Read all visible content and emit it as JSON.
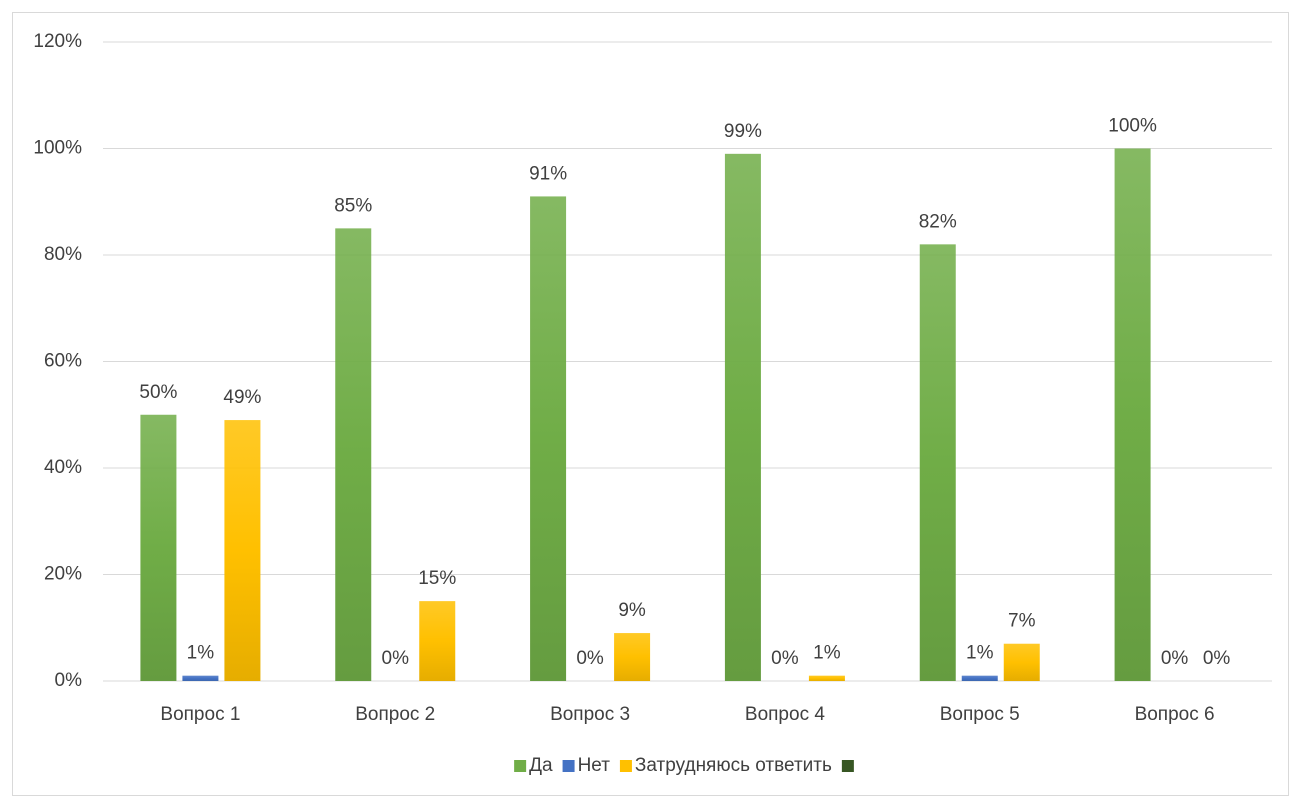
{
  "chart_data": {
    "type": "bar",
    "categories": [
      "Вопрос 1",
      "Вопрос 2",
      "Вопрос 3",
      "Вопрос 4",
      "Вопрос 5",
      "Вопрос 6"
    ],
    "series": [
      {
        "name": "Да",
        "color": "#70ad47",
        "values": [
          50,
          85,
          91,
          99,
          82,
          100
        ],
        "value_labels": [
          "50%",
          "85%",
          "91%",
          "99%",
          "82%",
          "100%"
        ]
      },
      {
        "name": "Нет",
        "color": "#4472c4",
        "values": [
          1,
          0,
          0,
          0,
          1,
          0
        ],
        "value_labels": [
          "1%",
          "0%",
          "0%",
          "0%",
          "1%",
          "0%"
        ]
      },
      {
        "name": "Затрудняюсь ответить",
        "color": "#ffc000",
        "values": [
          49,
          15,
          9,
          1,
          7,
          0
        ],
        "value_labels": [
          "49%",
          "15%",
          "9%",
          "1%",
          "7%",
          "0%"
        ]
      },
      {
        "color": "#375623",
        "values": [
          null,
          null,
          null,
          null,
          null,
          null
        ]
      }
    ],
    "ylim": [
      0,
      120
    ],
    "yticks": [
      {
        "value": 0,
        "label": "0%"
      },
      {
        "value": 20,
        "label": "20%"
      },
      {
        "value": 40,
        "label": "40%"
      },
      {
        "value": 60,
        "label": "60%"
      },
      {
        "value": 80,
        "label": "80%"
      },
      {
        "value": 100,
        "label": "100%"
      },
      {
        "value": 120,
        "label": "120%"
      }
    ],
    "grid": true,
    "legend": "bottom"
  }
}
